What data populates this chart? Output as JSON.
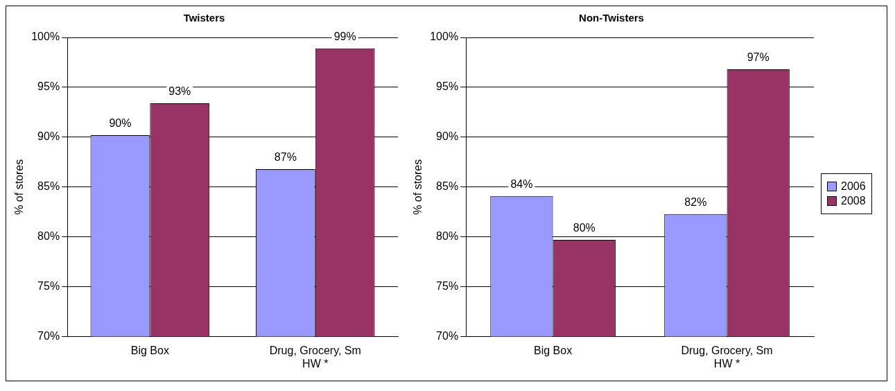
{
  "chart_data": [
    {
      "type": "bar",
      "title": "Twisters",
      "ylabel": "% of stores",
      "categories": [
        "Big Box",
        "Drug, Grocery, Sm HW *"
      ],
      "series": [
        {
          "color": "#9999ff",
          "values": [
            90.2,
            86.8
          ],
          "value_labels": [
            "90%",
            "87%"
          ]
        },
        {
          "color": "#993366",
          "values": [
            93.4,
            98.9
          ],
          "value_labels": [
            "93%",
            "99%"
          ]
        }
      ],
      "ylim": [
        70,
        100
      ],
      "yticks": [
        {
          "value": 70,
          "label": "70%"
        },
        {
          "value": 75,
          "label": "75%"
        },
        {
          "value": 80,
          "label": "80%"
        },
        {
          "value": 85,
          "label": "85%"
        },
        {
          "value": 90,
          "label": "90%"
        },
        {
          "value": 95,
          "label": "95%"
        },
        {
          "value": 100,
          "label": "100%"
        }
      ],
      "grid": "y"
    },
    {
      "type": "bar",
      "title": "Non-Twisters",
      "ylabel": "% of stores",
      "categories": [
        "Big Box",
        "Drug, Grocery, Sm HW *"
      ],
      "series": [
        {
          "name": "2006",
          "color": "#9999ff",
          "values": [
            84.1,
            82.3
          ],
          "value_labels": [
            "84%",
            "82%"
          ]
        },
        {
          "name": "2008",
          "color": "#993366",
          "values": [
            79.7,
            96.8
          ],
          "value_labels": [
            "80%",
            "97%"
          ]
        }
      ],
      "ylim": [
        70,
        100
      ],
      "yticks": [
        {
          "value": 70,
          "label": "70%"
        },
        {
          "value": 75,
          "label": "75%"
        },
        {
          "value": 80,
          "label": "80%"
        },
        {
          "value": 85,
          "label": "85%"
        },
        {
          "value": 90,
          "label": "90%"
        },
        {
          "value": 95,
          "label": "95%"
        },
        {
          "value": 100,
          "label": "100%"
        }
      ],
      "grid": "y",
      "legend": "right"
    }
  ]
}
